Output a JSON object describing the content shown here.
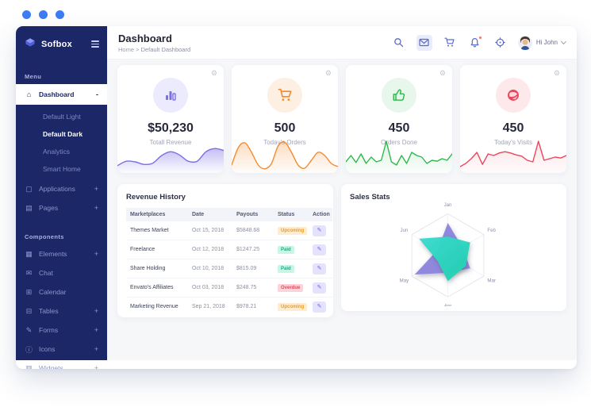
{
  "colors": {
    "accent_blue": "#3c7cf5",
    "sidebar_navy": "#1b2767",
    "icon_indigo": "#5b6ac8",
    "purple": "#7b6fe4",
    "orange": "#f68a2e",
    "green": "#2fb84e",
    "red": "#e8475c"
  },
  "sidebar": {
    "logo_text": "Sofbox",
    "menu_label": "Menu",
    "components_label": "Components",
    "dashboard": {
      "label": "Dashboard",
      "icon": "home-icon",
      "toggle": "-"
    },
    "dashboard_children": [
      {
        "label": "Default Light",
        "active": false
      },
      {
        "label": "Default Dark",
        "active": true
      },
      {
        "label": "Analytics",
        "active": false
      },
      {
        "label": "Smart Home",
        "active": false
      }
    ],
    "menu_items": [
      {
        "label": "Applications",
        "icon": "applications-icon",
        "toggle": "+"
      },
      {
        "label": "Pages",
        "icon": "pages-icon",
        "toggle": "+"
      }
    ],
    "component_items": [
      {
        "label": "Elements",
        "icon": "elements-icon",
        "toggle": "+"
      },
      {
        "label": "Chat",
        "icon": "chat-icon",
        "toggle": ""
      },
      {
        "label": "Calendar",
        "icon": "calendar-icon",
        "toggle": ""
      },
      {
        "label": "Tables",
        "icon": "tables-icon",
        "toggle": "+"
      },
      {
        "label": "Forms",
        "icon": "forms-icon",
        "toggle": "+"
      },
      {
        "label": "Icons",
        "icon": "icons-icon",
        "toggle": "+"
      },
      {
        "label": "Widgets",
        "icon": "widgets-icon",
        "toggle": "+"
      }
    ]
  },
  "header": {
    "title": "Dashboard",
    "breadcrumb_home": "Home",
    "breadcrumb_sep": ">",
    "breadcrumb_current": "Default Dashboard",
    "greeting": "Hi John",
    "icons": [
      "search-icon",
      "mail-icon",
      "cart-icon",
      "bell-icon",
      "compass-icon"
    ]
  },
  "stat_cards": [
    {
      "value": "$50,230",
      "label": "Totall Revenue",
      "icon": "bar-chart-icon",
      "color": "#7b6fe4",
      "tint": "#eceafd"
    },
    {
      "value": "500",
      "label": "Today's Orders",
      "icon": "cart-icon",
      "color": "#f68a2e",
      "tint": "#fdf0e2"
    },
    {
      "value": "450",
      "label": "Orders Done",
      "icon": "thumbs-up-icon",
      "color": "#2fb84e",
      "tint": "#e8f7ec"
    },
    {
      "value": "450",
      "label": "Today's Visits",
      "icon": "globe-icon",
      "color": "#e8475c",
      "tint": "#fde9ec"
    }
  ],
  "revenue_history": {
    "title": "Revenue History",
    "columns": [
      "Marketplaces",
      "Date",
      "Payouts",
      "Status",
      "Action"
    ],
    "rows": [
      {
        "marketplace": "Themes Market",
        "date": "Oct 15, 2018",
        "payout": "$5848.68",
        "status": "Upcoming"
      },
      {
        "marketplace": "Freelance",
        "date": "Oct 12, 2018",
        "payout": "$1247.25",
        "status": "Paid"
      },
      {
        "marketplace": "Share Holding",
        "date": "Oct 10, 2018",
        "payout": "$815.09",
        "status": "Paid"
      },
      {
        "marketplace": "Envato's Affiliates",
        "date": "Oct 03, 2018",
        "payout": "$248.75",
        "status": "Overdue"
      },
      {
        "marketplace": "Marketing Revenue",
        "date": "Sep 21, 2018",
        "payout": "$978.21",
        "status": "Upcoming"
      }
    ],
    "status_colors": {
      "Upcoming": {
        "bg": "#fdeccf",
        "text": "#ef9d1e"
      },
      "Paid": {
        "bg": "#c9f5e5",
        "text": "#15b08b"
      },
      "Overdue": {
        "bg": "#fcd3d9",
        "text": "#e8475c"
      }
    }
  },
  "sales_stats": {
    "title": "Sales Stats"
  },
  "chart_data": [
    {
      "type": "radar",
      "title": "Sales Stats",
      "categories": [
        "Jan",
        "Feb",
        "Mar",
        "Apr",
        "May",
        "Jun"
      ],
      "series": [
        {
          "name": "series-a",
          "color": "#8c84dd",
          "values": [
            0.78,
            0.4,
            0.62,
            0.42,
            0.92,
            0.28
          ]
        },
        {
          "name": "series-b",
          "color": "#2bd5c2",
          "values": [
            0.45,
            0.62,
            0.5,
            0.62,
            0.28,
            0.8
          ]
        }
      ],
      "scale": [
        0,
        1
      ],
      "grid": "hexagon",
      "legend": "none"
    },
    {
      "type": "area",
      "title": "Totall Revenue trend",
      "color": "#7b6fe4",
      "smooth": true,
      "fill_opacity": 0.45,
      "values": [
        0.18,
        0.32,
        0.3,
        0.22,
        0.26,
        0.5,
        0.62,
        0.52,
        0.32,
        0.32,
        0.62,
        0.72,
        0.66
      ]
    },
    {
      "type": "area",
      "title": "Today's Orders trend",
      "color": "#f68a2e",
      "smooth": true,
      "fill_opacity": 0.3,
      "values": [
        0.2,
        0.75,
        0.9,
        0.6,
        0.2,
        0.08,
        0.25,
        0.8,
        0.92,
        0.6,
        0.2,
        0.1,
        0.35,
        0.6,
        0.5,
        0.25,
        0.15
      ]
    },
    {
      "type": "area",
      "title": "Orders Done trend",
      "color": "#2fb84e",
      "smooth": false,
      "fill_opacity": 0.18,
      "values": [
        0.3,
        0.5,
        0.28,
        0.55,
        0.25,
        0.45,
        0.3,
        0.35,
        0.95,
        0.3,
        0.2,
        0.5,
        0.25,
        0.6,
        0.5,
        0.45,
        0.25,
        0.35,
        0.32,
        0.4,
        0.35,
        0.55
      ]
    },
    {
      "type": "area",
      "title": "Today's Visits trend",
      "color": "#e8475c",
      "smooth": false,
      "fill_opacity": 0.15,
      "values": [
        0.15,
        0.25,
        0.4,
        0.6,
        0.22,
        0.55,
        0.5,
        0.58,
        0.62,
        0.58,
        0.52,
        0.48,
        0.35,
        0.3,
        0.95,
        0.35,
        0.4,
        0.45,
        0.42,
        0.5
      ]
    }
  ]
}
